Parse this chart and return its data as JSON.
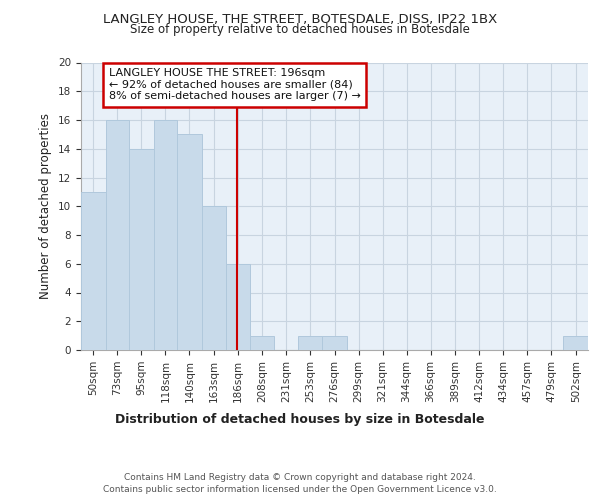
{
  "title1": "LANGLEY HOUSE, THE STREET, BOTESDALE, DISS, IP22 1BX",
  "title2": "Size of property relative to detached houses in Botesdale",
  "xlabel": "Distribution of detached houses by size in Botesdale",
  "ylabel": "Number of detached properties",
  "bins": [
    50,
    73,
    95,
    118,
    140,
    163,
    186,
    208,
    231,
    253,
    276,
    299,
    321,
    344,
    366,
    389,
    412,
    434,
    457,
    479,
    502
  ],
  "values": [
    11,
    16,
    14,
    16,
    15,
    10,
    6,
    1,
    0,
    1,
    1,
    0,
    0,
    0,
    0,
    0,
    0,
    0,
    0,
    0,
    1
  ],
  "bar_color": "#c8daea",
  "bar_edge_color": "#b0c8dc",
  "red_line_x": 196,
  "annotation_line1": "LANGLEY HOUSE THE STREET: 196sqm",
  "annotation_line2": "← 92% of detached houses are smaller (84)",
  "annotation_line3": "8% of semi-detached houses are larger (7) →",
  "annotation_box_color": "#ffffff",
  "annotation_box_edge": "#cc0000",
  "red_line_color": "#cc0000",
  "grid_color": "#c8d4e0",
  "background_color": "#e8f0f8",
  "footer1": "Contains HM Land Registry data © Crown copyright and database right 2024.",
  "footer2": "Contains public sector information licensed under the Open Government Licence v3.0.",
  "ylim": [
    0,
    20
  ],
  "yticks": [
    0,
    2,
    4,
    6,
    8,
    10,
    12,
    14,
    16,
    18,
    20
  ]
}
